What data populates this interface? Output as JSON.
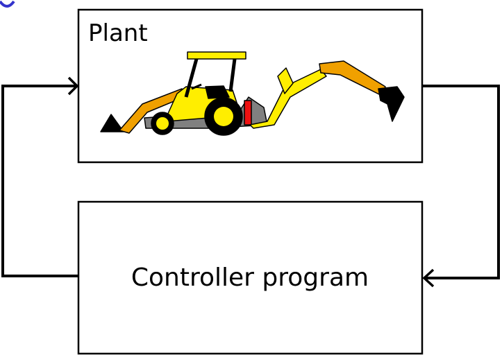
{
  "diagram": {
    "plant": {
      "label": "Plant",
      "image": "backhoe-loader-illustration"
    },
    "controller": {
      "label": "Controller program"
    },
    "connections": [
      {
        "from": "plant",
        "to": "controller",
        "arrowhead": "left"
      },
      {
        "from": "controller",
        "to": "plant",
        "arrowhead": "right"
      }
    ]
  },
  "colors": {
    "stroke": "#000000",
    "body_yellow": "#ffee00",
    "arm_orange": "#f0a000",
    "chassis_grey": "#808080",
    "tail_light": "#ee1111",
    "partial_header": "#3333cc"
  }
}
